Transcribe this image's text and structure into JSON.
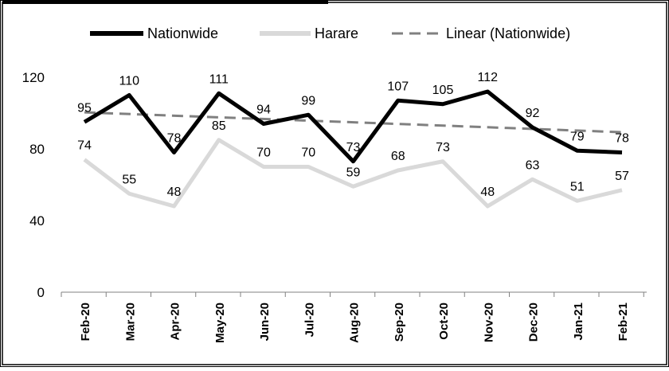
{
  "chart_data": {
    "type": "line",
    "categories": [
      "Feb-20",
      "Mar-20",
      "Apr-20",
      "May-20",
      "Jun-20",
      "Jul-20",
      "Aug-20",
      "Sep-20",
      "Oct-20",
      "Nov-20",
      "Dec-20",
      "Jan-21",
      "Feb-21"
    ],
    "series": [
      {
        "name": "Nationwide",
        "values": [
          95,
          110,
          78,
          111,
          94,
          99,
          73,
          107,
          105,
          112,
          92,
          79,
          78
        ],
        "color": "#000000",
        "style": "solid-thick"
      },
      {
        "name": "Harare",
        "values": [
          74,
          55,
          48,
          85,
          70,
          70,
          59,
          68,
          73,
          48,
          63,
          51,
          57
        ],
        "color": "#d9d9d9",
        "style": "solid-thick"
      }
    ],
    "trendline": {
      "name": "Linear (Nationwide)",
      "of_series": "Nationwide",
      "color": "#808080",
      "style": "dashed"
    },
    "y_ticks": [
      0,
      40,
      80,
      120
    ],
    "ylim": [
      0,
      135
    ],
    "grid": false,
    "legend_position": "top",
    "data_labels": true
  }
}
